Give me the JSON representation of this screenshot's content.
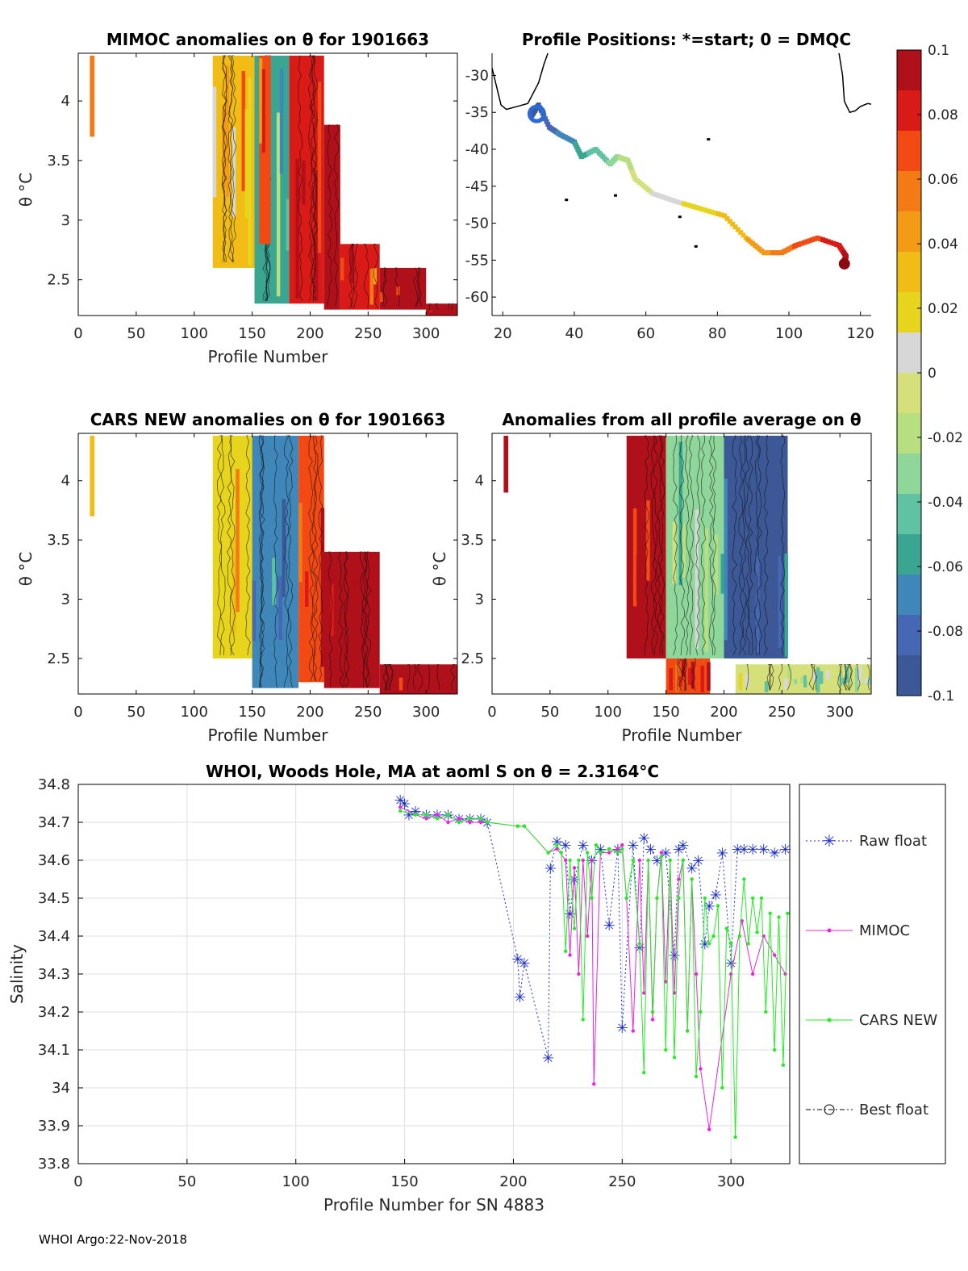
{
  "footer": "WHOI Argo:22-Nov-2018",
  "colorbar": {
    "ticks": [
      "0.1",
      "0.08",
      "0.06",
      "0.04",
      "0.02",
      "0",
      "-0.02",
      "-0.04",
      "-0.06",
      "-0.08",
      "-0.1"
    ],
    "colors": [
      "#b0101a",
      "#d91a17",
      "#f24a12",
      "#f47a15",
      "#f49b16",
      "#f2bc16",
      "#e6d51c",
      "#d7d7d7",
      "#d6e07a",
      "#b7de7f",
      "#8fd69a",
      "#5fc2a2",
      "#3aa692",
      "#3f86b9",
      "#4667b4",
      "#3d5896"
    ]
  },
  "chart_data": [
    {
      "id": "mimoc",
      "type": "heatmap",
      "title": "MIMOC anomalies on θ  for 1901663",
      "xlabel": "Profile Number",
      "ylabel": "θ °C",
      "xlim": [
        0,
        327
      ],
      "ylim": [
        2.2,
        4.4
      ],
      "xticks": [
        "0",
        "50",
        "100",
        "150",
        "200",
        "250",
        "300"
      ],
      "yticks": [
        "4",
        "3.5",
        "3",
        "2.5"
      ],
      "blocks": [
        {
          "x0": 10,
          "x1": 14,
          "ytop": 4.38,
          "ybot": 3.7,
          "anomaly": 0.06
        },
        {
          "x0": 116,
          "x1": 152,
          "ytop": 4.38,
          "ybot": 2.6,
          "anomaly": 0.04
        },
        {
          "x0": 152,
          "x1": 182,
          "ytop": 4.38,
          "ybot": 2.3,
          "anomaly": -0.06
        },
        {
          "x0": 156,
          "x1": 166,
          "ytop": 4.38,
          "ybot": 2.8,
          "anomaly": 0.08
        },
        {
          "x0": 182,
          "x1": 212,
          "ytop": 4.38,
          "ybot": 2.3,
          "anomaly": 0.09
        },
        {
          "x0": 212,
          "x1": 226,
          "ytop": 3.8,
          "ybot": 2.25,
          "anomaly": 0.1
        },
        {
          "x0": 226,
          "x1": 260,
          "ytop": 2.8,
          "ybot": 2.25,
          "anomaly": 0.09
        },
        {
          "x0": 260,
          "x1": 300,
          "ytop": 2.6,
          "ybot": 2.25,
          "anomaly": 0.1
        },
        {
          "x0": 300,
          "x1": 327,
          "ytop": 2.3,
          "ybot": 2.2,
          "anomaly": 0.1
        }
      ]
    },
    {
      "id": "positions",
      "type": "scatter",
      "title": "Profile Positions: *=start; 0 = DMQC",
      "xlim": [
        17,
        123
      ],
      "ylim": [
        -62.5,
        -27
      ],
      "xticks": [
        "20",
        "40",
        "60",
        "80",
        "100",
        "120"
      ],
      "yticks": [
        "-30",
        "-35",
        "-40",
        "-45",
        "-50",
        "-55",
        "-60"
      ],
      "track": [
        [
          28,
          -35.5
        ],
        [
          30,
          -34
        ],
        [
          33,
          -37
        ],
        [
          36,
          -38
        ],
        [
          40,
          -39
        ],
        [
          42,
          -41
        ],
        [
          46,
          -40
        ],
        [
          50,
          -42
        ],
        [
          52,
          -41
        ],
        [
          55,
          -41.5
        ],
        [
          57,
          -44
        ],
        [
          62,
          -46
        ],
        [
          68,
          -47
        ],
        [
          75,
          -48
        ],
        [
          82,
          -49
        ],
        [
          88,
          -52
        ],
        [
          93,
          -54
        ],
        [
          98,
          -54
        ],
        [
          102,
          -53
        ],
        [
          108,
          -52
        ],
        [
          114,
          -53
        ],
        [
          116,
          -54.5
        ],
        [
          115,
          -55.5
        ]
      ]
    },
    {
      "id": "cars",
      "type": "heatmap",
      "title": "CARS NEW anomalies on θ for 1901663",
      "xlabel": "Profile Number",
      "ylabel": "θ °C",
      "xlim": [
        0,
        327
      ],
      "ylim": [
        2.2,
        4.4
      ],
      "xticks": [
        "0",
        "50",
        "100",
        "150",
        "200",
        "250",
        "300"
      ],
      "yticks": [
        "4",
        "3.5",
        "3",
        "2.5"
      ],
      "blocks": [
        {
          "x0": 10,
          "x1": 14,
          "ytop": 4.38,
          "ybot": 3.7,
          "anomaly": 0.04
        },
        {
          "x0": 116,
          "x1": 150,
          "ytop": 4.38,
          "ybot": 2.5,
          "anomaly": 0.02
        },
        {
          "x0": 150,
          "x1": 190,
          "ytop": 4.38,
          "ybot": 2.25,
          "anomaly": -0.07
        },
        {
          "x0": 190,
          "x1": 212,
          "ytop": 4.38,
          "ybot": 2.3,
          "anomaly": 0.08
        },
        {
          "x0": 212,
          "x1": 260,
          "ytop": 3.4,
          "ybot": 2.25,
          "anomaly": 0.1
        },
        {
          "x0": 260,
          "x1": 327,
          "ytop": 2.45,
          "ybot": 2.2,
          "anomaly": 0.1
        }
      ]
    },
    {
      "id": "allavg",
      "type": "heatmap",
      "title": "Anomalies from all profile average on θ",
      "xlabel": "Profile Number",
      "ylabel": "θ °C",
      "xlim": [
        0,
        327
      ],
      "ylim": [
        2.2,
        4.4
      ],
      "xticks": [
        "0",
        "50",
        "100",
        "150",
        "200",
        "250",
        "300"
      ],
      "yticks": [
        "4",
        "3.5",
        "3",
        "2.5"
      ],
      "blocks": [
        {
          "x0": 10,
          "x1": 14,
          "ytop": 4.38,
          "ybot": 3.9,
          "anomaly": 0.1
        },
        {
          "x0": 116,
          "x1": 150,
          "ytop": 4.38,
          "ybot": 2.5,
          "anomaly": 0.1
        },
        {
          "x0": 150,
          "x1": 188,
          "ytop": 2.5,
          "ybot": 2.2,
          "anomaly": 0.08
        },
        {
          "x0": 150,
          "x1": 200,
          "ytop": 4.38,
          "ybot": 2.5,
          "anomaly": -0.03
        },
        {
          "x0": 200,
          "x1": 255,
          "ytop": 4.38,
          "ybot": 2.5,
          "anomaly": -0.1
        },
        {
          "x0": 210,
          "x1": 327,
          "ytop": 2.45,
          "ybot": 2.2,
          "anomaly": -0.01
        }
      ]
    },
    {
      "id": "salinity",
      "type": "line",
      "title": "WHOI, Woods Hole, MA at aoml S on θ = 2.3164°C",
      "xlabel": "Profile Number for SN 4883",
      "ylabel": "Salinity",
      "xlim": [
        0,
        327
      ],
      "ylim": [
        33.8,
        34.8
      ],
      "xticks": [
        "0",
        "50",
        "100",
        "150",
        "200",
        "250",
        "300"
      ],
      "yticks": [
        "34.8",
        "34.7",
        "34.6",
        "34.5",
        "34.4",
        "34.3",
        "34.2",
        "34.1",
        "34",
        "33.9",
        "33.8"
      ],
      "grid": true,
      "legend": [
        "Raw float",
        "MIMOC",
        "CARS NEW",
        "Best float"
      ],
      "series": [
        {
          "name": "Raw float",
          "x": [
            148,
            150,
            152,
            155,
            160,
            165,
            170,
            175,
            180,
            185,
            188,
            202,
            203,
            205,
            216,
            217,
            220,
            224,
            226,
            228,
            232,
            236,
            240,
            244,
            248,
            250,
            255,
            258,
            260,
            263,
            266,
            270,
            274,
            276,
            278,
            282,
            285,
            288,
            290,
            293,
            296,
            300,
            303,
            306,
            310,
            315,
            320,
            325
          ],
          "y": [
            34.76,
            34.75,
            34.72,
            34.73,
            34.72,
            34.72,
            34.72,
            34.71,
            34.71,
            34.71,
            34.7,
            34.34,
            34.24,
            34.33,
            34.08,
            34.58,
            34.65,
            34.64,
            34.46,
            34.55,
            34.64,
            34.6,
            34.63,
            34.43,
            34.63,
            34.16,
            34.64,
            34.37,
            34.66,
            34.63,
            34.6,
            34.62,
            34.35,
            34.63,
            34.64,
            34.58,
            34.6,
            34.38,
            34.48,
            34.51,
            34.62,
            34.33,
            34.63,
            34.63,
            34.63,
            34.63,
            34.62,
            34.63
          ]
        },
        {
          "name": "MIMOC",
          "x": [
            148,
            155,
            160,
            165,
            170,
            175,
            180,
            185,
            188,
            202,
            205,
            216,
            220,
            224,
            226,
            228,
            230,
            232,
            234,
            236,
            237,
            240,
            244,
            248,
            250,
            252,
            255,
            258,
            260,
            262,
            264,
            266,
            268,
            270,
            272,
            274,
            276,
            278,
            280,
            282,
            284,
            286,
            290,
            300,
            305,
            310,
            315,
            320,
            325
          ],
          "y": [
            34.74,
            34.72,
            34.71,
            34.72,
            34.7,
            34.71,
            34.7,
            34.7,
            34.7,
            34.69,
            34.69,
            34.62,
            34.63,
            34.6,
            34.35,
            34.58,
            34.3,
            34.6,
            34.4,
            34.6,
            34.01,
            34.62,
            34.62,
            34.63,
            34.64,
            34.5,
            34.15,
            34.6,
            34.25,
            34.6,
            34.18,
            34.5,
            34.62,
            34.28,
            34.6,
            34.25,
            34.55,
            34.6,
            34.15,
            34.55,
            34.3,
            34.05,
            33.89,
            34.3,
            34.44,
            34.3,
            34.4,
            34.35,
            34.3
          ]
        },
        {
          "name": "CARS NEW",
          "x": [
            148,
            155,
            160,
            165,
            170,
            175,
            180,
            185,
            188,
            202,
            205,
            216,
            220,
            222,
            224,
            226,
            228,
            230,
            232,
            234,
            236,
            238,
            240,
            244,
            248,
            250,
            252,
            255,
            258,
            260,
            262,
            264,
            266,
            268,
            270,
            272,
            274,
            276,
            278,
            280,
            282,
            284,
            286,
            288,
            290,
            292,
            294,
            296,
            298,
            300,
            302,
            304,
            306,
            308,
            310,
            312,
            314,
            316,
            318,
            320,
            322,
            324,
            326
          ],
          "y": [
            34.73,
            34.72,
            34.72,
            34.71,
            34.72,
            34.7,
            34.71,
            34.71,
            34.7,
            34.69,
            34.69,
            34.62,
            34.64,
            34.62,
            34.36,
            34.6,
            34.42,
            34.6,
            34.18,
            34.62,
            34.5,
            34.64,
            34.62,
            34.63,
            34.62,
            34.63,
            34.5,
            34.6,
            34.38,
            34.04,
            34.6,
            34.2,
            34.5,
            34.61,
            34.1,
            34.6,
            34.08,
            34.5,
            34.6,
            34.15,
            34.55,
            34.03,
            34.2,
            34.5,
            34.38,
            34.4,
            34.48,
            34.0,
            34.42,
            34.38,
            33.87,
            34.4,
            34.55,
            34.38,
            34.5,
            34.41,
            34.5,
            34.2,
            34.46,
            34.1,
            34.45,
            34.06,
            34.46
          ]
        },
        {
          "name": "Best float",
          "x": [],
          "y": []
        }
      ]
    }
  ]
}
